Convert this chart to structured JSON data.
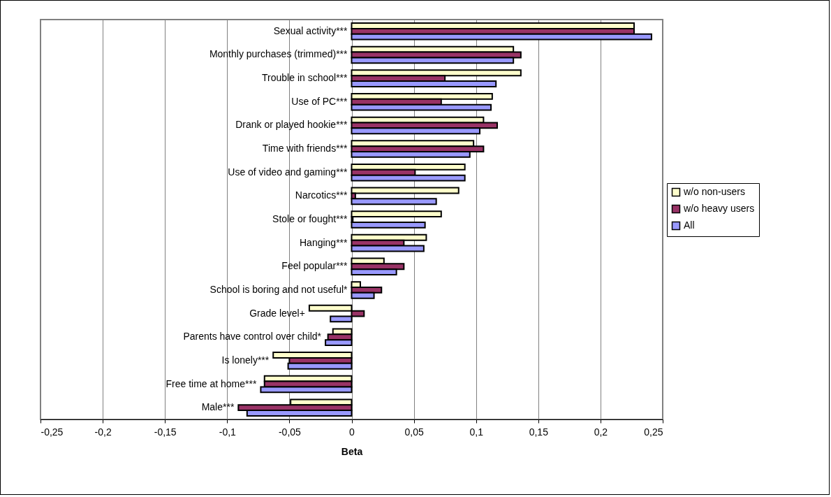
{
  "chart_data": {
    "type": "bar",
    "orientation": "horizontal",
    "xlabel": "Beta",
    "categories": [
      "Sexual activity***",
      "Monthly purchases (trimmed)***",
      "Trouble in school***",
      "Use of PC***",
      "Drank or played hookie***",
      "Time with friends***",
      "Use of video and gaming***",
      "Narcotics***",
      "Stole or fought***",
      "Hanging***",
      "Feel popular***",
      "School is boring and not useful*",
      "Grade level+",
      "Parents have control over child*",
      "Is lonely***",
      "Free time at home***",
      "Male***"
    ],
    "series": [
      {
        "name": "w/o non-users",
        "color": "#ffffcc",
        "values": [
          0.227,
          0.13,
          0.136,
          0.113,
          0.106,
          0.098,
          0.091,
          0.086,
          0.072,
          0.06,
          0.026,
          0.007,
          -0.034,
          -0.015,
          -0.063,
          -0.07,
          -0.049
        ]
      },
      {
        "name": "w/o heavy users",
        "color": "#993366",
        "values": [
          0.227,
          0.136,
          0.075,
          0.072,
          0.117,
          0.106,
          0.051,
          0.003,
          0.001,
          0.042,
          0.042,
          0.024,
          0.01,
          -0.019,
          -0.05,
          -0.07,
          -0.091
        ]
      },
      {
        "name": "All",
        "color": "#9999ff",
        "values": [
          0.241,
          0.13,
          0.116,
          0.112,
          0.103,
          0.095,
          0.091,
          0.068,
          0.059,
          0.058,
          0.036,
          0.018,
          -0.017,
          -0.021,
          -0.051,
          -0.073,
          -0.084
        ]
      }
    ],
    "xlim": [
      -0.25,
      0.25
    ],
    "xticks": [
      {
        "value": -0.25,
        "label": "-0,25"
      },
      {
        "value": -0.2,
        "label": "-0,2"
      },
      {
        "value": -0.15,
        "label": "-0,15"
      },
      {
        "value": -0.1,
        "label": "-0,1"
      },
      {
        "value": -0.05,
        "label": "-0,05"
      },
      {
        "value": 0,
        "label": "0"
      },
      {
        "value": 0.05,
        "label": "0,05"
      },
      {
        "value": 0.1,
        "label": "0,1"
      },
      {
        "value": 0.15,
        "label": "0,15"
      },
      {
        "value": 0.2,
        "label": "0,2"
      },
      {
        "value": 0.25,
        "label": "0,25"
      }
    ],
    "grid": "x",
    "legend": "right"
  }
}
